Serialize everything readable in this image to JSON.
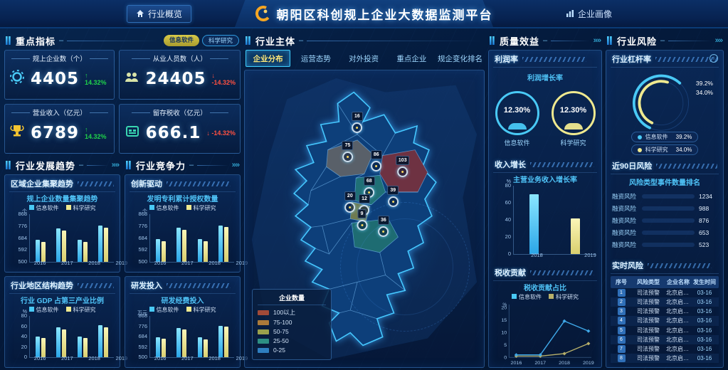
{
  "app": {
    "title": "朝阳区科创规上企业大数据监测平台",
    "nav_overview": "行业概览",
    "nav_portrait": "企业画像"
  },
  "colors": {
    "accent": "#3fd0ff",
    "series_info": "#49c9f5",
    "series_sci": "#efe98f",
    "up_green": "#1fd34a",
    "down_red": "#ff5040"
  },
  "kpi": {
    "title": "重点指标",
    "tags": [
      "信息软件",
      "科学研究"
    ],
    "cards": [
      {
        "label": "规上企业数（个）",
        "value": "4405",
        "delta": "14.32%",
        "dir": "up",
        "icon": "gear-icon"
      },
      {
        "label": "从业人员数（人）",
        "value": "24405",
        "delta": "-14.32%",
        "dir": "down",
        "icon": "people-icon"
      },
      {
        "label": "营业收入（亿元）",
        "value": "6789",
        "delta": "14.32%",
        "dir": "up",
        "icon": "trophy-icon"
      },
      {
        "label": "留存税收（亿元）",
        "value": "666.1",
        "delta": "-14.32%",
        "dir": "down",
        "icon": "wallet-icon"
      }
    ]
  },
  "sections": {
    "trend": {
      "title": "行业发展趋势",
      "sub1": "区域企业集聚趋势",
      "sub2": "行业地区结构趋势"
    },
    "compete": {
      "title": "行业竞争力",
      "sub1": "创新驱动",
      "sub2": "研发投入"
    },
    "main": {
      "title": "行业主体",
      "tabs": [
        "企业分布",
        "运营态势",
        "对外投资",
        "重点企业",
        "规企变化排名"
      ],
      "active_tab": 0
    },
    "quality": {
      "title": "质量效益",
      "sub1": "利润率",
      "sub2": "收入增长",
      "sub3": "税收贡献"
    },
    "risk": {
      "title": "行业风险",
      "sub1": "行业杠杆率",
      "sub2": "近90日风险",
      "sub3": "实时风险"
    }
  },
  "chart_data": {
    "cluster": {
      "type": "bar",
      "title": "规上企业数量集聚趋势",
      "unit": "个",
      "categories": [
        "2016",
        "2017",
        "2018",
        "2019"
      ],
      "yticks": [
        500,
        592,
        684,
        776,
        868
      ],
      "ylim": [
        500,
        868
      ],
      "series": [
        {
          "name": "信息软件",
          "values": [
            668,
            758,
            668,
            778
          ]
        },
        {
          "name": "科学研究",
          "values": [
            655,
            742,
            652,
            765
          ]
        }
      ]
    },
    "gdp": {
      "type": "bar",
      "title": "行业 GDP 占第三产业比例",
      "unit": "%",
      "categories": [
        "2016",
        "2017",
        "2018",
        "2019"
      ],
      "yticks": [
        0,
        20,
        40,
        60,
        80
      ],
      "ylim": [
        0,
        80
      ],
      "series": [
        {
          "name": "信息软件",
          "values": [
            40,
            58,
            40,
            62
          ]
        },
        {
          "name": "科学研究",
          "values": [
            37,
            54,
            37,
            58
          ]
        }
      ]
    },
    "patent": {
      "type": "bar",
      "title": "发明专利累计授权数量",
      "unit": "个",
      "categories": [
        "2016",
        "2017",
        "2018",
        "2019"
      ],
      "yticks": [
        500,
        592,
        684,
        776,
        868
      ],
      "ylim": [
        500,
        868
      ],
      "series": [
        {
          "name": "信息软件",
          "values": [
            676,
            764,
            678,
            780
          ]
        },
        {
          "name": "科学研究",
          "values": [
            660,
            748,
            658,
            770
          ]
        }
      ]
    },
    "rnd": {
      "type": "bar",
      "title": "研发经费投入",
      "unit": "万元",
      "categories": [
        "2016",
        "2017",
        "2018",
        "2019"
      ],
      "yticks": [
        500,
        592,
        684,
        776,
        868
      ],
      "ylim": [
        500,
        868
      ],
      "series": [
        {
          "name": "信息软件",
          "values": [
            676,
            760,
            676,
            780
          ]
        },
        {
          "name": "科学研究",
          "values": [
            665,
            745,
            660,
            772
          ]
        }
      ]
    },
    "profit": {
      "type": "gauge",
      "title": "利润增长率",
      "items": [
        {
          "name": "信息软件",
          "value": "12.30%"
        },
        {
          "name": "科学研究",
          "value": "12.30%"
        }
      ]
    },
    "income": {
      "type": "bar",
      "title": "主营业务收入增长率",
      "unit": "%",
      "categories": [
        "2018",
        "2019"
      ],
      "yticks": [
        0,
        20,
        40,
        60,
        80
      ],
      "ylim": [
        0,
        80
      ],
      "values": [
        70,
        42
      ]
    },
    "tax": {
      "type": "line",
      "title": "税收贡献占比",
      "unit": "%",
      "categories": [
        "2016",
        "2017",
        "2018",
        "2019"
      ],
      "yticks": [
        0,
        5,
        10,
        15,
        20
      ],
      "ylim": [
        0,
        20
      ],
      "series": [
        {
          "name": "信息软件",
          "values": [
            1,
            1,
            14.5,
            10.5
          ]
        },
        {
          "name": "科学研究",
          "values": [
            0.5,
            0.5,
            1.5,
            5.5
          ]
        }
      ]
    },
    "leverage": {
      "type": "gauge-arc",
      "title": "行业杠杆率",
      "items": [
        {
          "name": "信息软件",
          "value": 39.2,
          "label": "39.2%"
        },
        {
          "name": "科学研究",
          "value": 34.0,
          "label": "34.0%"
        }
      ]
    },
    "risk90": {
      "type": "hbar",
      "title": "风险类型事件数量排名",
      "max": 1234,
      "items": [
        {
          "label": "融资风险",
          "value": 1234
        },
        {
          "label": "融资风险",
          "value": 988
        },
        {
          "label": "融资风险",
          "value": 876
        },
        {
          "label": "融资风险",
          "value": 653
        },
        {
          "label": "融资风险",
          "value": 523
        }
      ]
    },
    "map": {
      "type": "map",
      "legend_title": "企业数量",
      "legend": [
        {
          "label": "100以上",
          "color": "#a04a38"
        },
        {
          "label": "75-100",
          "color": "#ab7a3a"
        },
        {
          "label": "50-75",
          "color": "#9aa14c"
        },
        {
          "label": "25-50",
          "color": "#2d8f83"
        },
        {
          "label": "0-25",
          "color": "#2e7fc0"
        }
      ],
      "markers": [
        {
          "value": 16,
          "x": 47,
          "y": 21
        },
        {
          "value": 75,
          "x": 43,
          "y": 31
        },
        {
          "value": 86,
          "x": 55,
          "y": 34
        },
        {
          "value": 103,
          "x": 66,
          "y": 36
        },
        {
          "value": 68,
          "x": 52,
          "y": 43
        },
        {
          "value": 39,
          "x": 62,
          "y": 46
        },
        {
          "value": 20,
          "x": 44,
          "y": 48
        },
        {
          "value": 12,
          "x": 50,
          "y": 49
        },
        {
          "value": 9,
          "x": 49,
          "y": 54
        },
        {
          "value": 36,
          "x": 58,
          "y": 56
        }
      ]
    }
  },
  "risk_table": {
    "headers": [
      "序号",
      "风险类型",
      "企业名称",
      "发生时间"
    ],
    "rows": [
      {
        "no": "1",
        "type": "司法预警",
        "company": "北京启迪卓越科技有限公司",
        "time": "03-16"
      },
      {
        "no": "2",
        "type": "司法预警",
        "company": "北京启迪卓越科技有限公司",
        "time": "03-16"
      },
      {
        "no": "3",
        "type": "司法预警",
        "company": "北京启迪卓越科技有限公司",
        "time": "03-16"
      },
      {
        "no": "4",
        "type": "司法预警",
        "company": "北京启迪卓越科技有限公司",
        "time": "03-16"
      },
      {
        "no": "5",
        "type": "司法预警",
        "company": "北京启迪卓越科技有限公司",
        "time": "03-16"
      },
      {
        "no": "6",
        "type": "司法预警",
        "company": "北京启迪卓越科技有限公司",
        "time": "03-16"
      },
      {
        "no": "7",
        "type": "司法预警",
        "company": "北京启迪卓越科技有限公司",
        "time": "03-16"
      },
      {
        "no": "8",
        "type": "司法预警",
        "company": "北京启迪卓越科技有限公司",
        "time": "03-16"
      }
    ]
  }
}
